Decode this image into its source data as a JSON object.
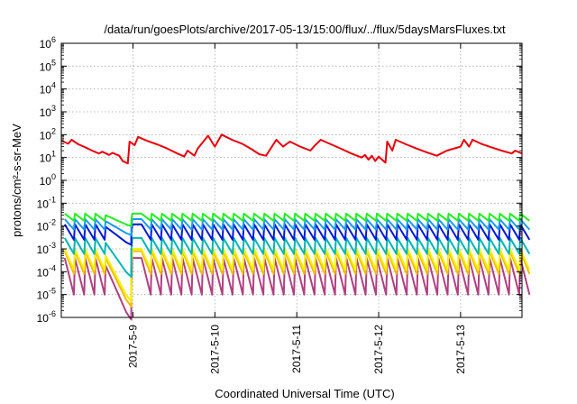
{
  "chart_data": {
    "type": "line",
    "title": "/data/run/goesPlots/archive/2017-05-13/15:00/flux/../flux/5daysMarsFluxes.txt",
    "xlabel": "Coordinated Universal Time (UTC)",
    "ylabel": "protons/cm²-s-sr-MeV",
    "y_scale": "log",
    "ylim": [
      1e-06,
      1000000.0
    ],
    "y_ticks": [
      {
        "value": 1e-06,
        "mant": "10",
        "exp": "-6"
      },
      {
        "value": 1e-05,
        "mant": "10",
        "exp": "-5"
      },
      {
        "value": 0.0001,
        "mant": "10",
        "exp": "-4"
      },
      {
        "value": 0.001,
        "mant": "10",
        "exp": "-3"
      },
      {
        "value": 0.01,
        "mant": "10",
        "exp": "-2"
      },
      {
        "value": 0.1,
        "mant": "10",
        "exp": "-1"
      },
      {
        "value": 1,
        "mant": "10",
        "exp": "0"
      },
      {
        "value": 10,
        "mant": "10",
        "exp": "1"
      },
      {
        "value": 100,
        "mant": "10",
        "exp": "2"
      },
      {
        "value": 1000,
        "mant": "10",
        "exp": "3"
      },
      {
        "value": 10000,
        "mant": "10",
        "exp": "4"
      },
      {
        "value": 100000,
        "mant": "10",
        "exp": "5"
      },
      {
        "value": 1000000,
        "mant": "10",
        "exp": "6"
      }
    ],
    "xlim": [
      "2017-05-08T03:00",
      "2017-05-13T18:00"
    ],
    "x_ticks": [
      {
        "value": "2017-05-09",
        "label": "2017-5-9"
      },
      {
        "value": "2017-05-10",
        "label": "2017-5-10"
      },
      {
        "value": "2017-05-11",
        "label": "2017-5-11"
      },
      {
        "value": "2017-05-12",
        "label": "2017-5-12"
      },
      {
        "value": "2017-05-13",
        "label": "2017-5-13"
      }
    ],
    "grid": true,
    "legend": "none",
    "series": [
      {
        "color": "#e8000b",
        "pattern": "sawtooth",
        "values": [
          [
            "2017-05-08T03:00",
            55
          ],
          [
            "2017-05-08T05:00",
            40
          ],
          [
            "2017-05-08T06:00",
            60
          ],
          [
            "2017-05-08T08:00",
            38
          ],
          [
            "2017-05-08T10:00",
            28
          ],
          [
            "2017-05-08T12:00",
            20
          ],
          [
            "2017-05-08T14:00",
            15
          ],
          [
            "2017-05-08T15:00",
            18
          ],
          [
            "2017-05-08T17:00",
            13
          ],
          [
            "2017-05-08T18:00",
            16
          ],
          [
            "2017-05-08T20:00",
            12
          ],
          [
            "2017-05-08T21:00",
            7
          ],
          [
            "2017-05-08T22:30",
            5.5
          ],
          [
            "2017-05-08T23:00",
            50
          ],
          [
            "2017-05-09T00:30",
            35
          ],
          [
            "2017-05-09T01:30",
            80
          ],
          [
            "2017-05-09T04:00",
            55
          ],
          [
            "2017-05-09T07:00",
            38
          ],
          [
            "2017-05-09T10:00",
            25
          ],
          [
            "2017-05-09T13:00",
            15
          ],
          [
            "2017-05-09T15:00",
            11
          ],
          [
            "2017-05-09T16:00",
            20
          ],
          [
            "2017-05-09T18:00",
            12
          ],
          [
            "2017-05-09T19:00",
            25
          ],
          [
            "2017-05-09T22:00",
            90
          ],
          [
            "2017-05-10T00:00",
            30
          ],
          [
            "2017-05-10T02:00",
            100
          ],
          [
            "2017-05-10T05:00",
            60
          ],
          [
            "2017-05-10T08:00",
            40
          ],
          [
            "2017-05-10T11:00",
            22
          ],
          [
            "2017-05-10T13:00",
            14
          ],
          [
            "2017-05-10T15:00",
            12
          ],
          [
            "2017-05-10T18:00",
            60
          ],
          [
            "2017-05-10T20:00",
            30
          ],
          [
            "2017-05-10T22:00",
            50
          ],
          [
            "2017-05-11T01:00",
            30
          ],
          [
            "2017-05-11T04:00",
            20
          ],
          [
            "2017-05-11T05:00",
            30
          ],
          [
            "2017-05-11T07:00",
            60
          ],
          [
            "2017-05-11T10:00",
            38
          ],
          [
            "2017-05-11T13:00",
            24
          ],
          [
            "2017-05-11T16:00",
            15
          ],
          [
            "2017-05-11T19:00",
            10
          ],
          [
            "2017-05-11T20:00",
            13
          ],
          [
            "2017-05-11T21:00",
            8
          ],
          [
            "2017-05-11T22:00",
            12
          ],
          [
            "2017-05-11T23:00",
            7
          ],
          [
            "2017-05-12T00:00",
            11
          ],
          [
            "2017-05-12T01:00",
            8
          ],
          [
            "2017-05-12T02:00",
            6
          ],
          [
            "2017-05-12T02:30",
            50
          ],
          [
            "2017-05-12T04:00",
            20
          ],
          [
            "2017-05-12T05:00",
            60
          ],
          [
            "2017-05-12T08:00",
            38
          ],
          [
            "2017-05-12T11:00",
            25
          ],
          [
            "2017-05-12T14:00",
            17
          ],
          [
            "2017-05-12T17:00",
            12
          ],
          [
            "2017-05-12T20:00",
            20
          ],
          [
            "2017-05-13T00:00",
            30
          ],
          [
            "2017-05-13T01:00",
            60
          ],
          [
            "2017-05-13T02:30",
            30
          ],
          [
            "2017-05-13T03:30",
            60
          ],
          [
            "2017-05-13T06:00",
            40
          ],
          [
            "2017-05-13T09:00",
            28
          ],
          [
            "2017-05-13T12:00",
            20
          ],
          [
            "2017-05-13T15:00",
            15
          ],
          [
            "2017-05-13T16:00",
            20
          ],
          [
            "2017-05-13T18:00",
            15
          ]
        ]
      },
      {
        "color": "#22ee22",
        "pattern": "cyclic",
        "high": 0.035,
        "low": 0.017,
        "dip_low": 0.01,
        "dip_recover": 0.017
      },
      {
        "color": "#1a9af0",
        "pattern": "cyclic",
        "high": 0.02,
        "low": 0.007,
        "dip_low": 0.004,
        "dip_recover": 0.009
      },
      {
        "color": "#0018d8",
        "pattern": "cyclic",
        "high": 0.012,
        "low": 0.0025,
        "dip_low": 0.0015,
        "dip_recover": 0.004
      },
      {
        "color": "#00b4b4",
        "pattern": "cyclic",
        "high": 0.003,
        "low": 0.0006,
        "dip_low": 6e-05,
        "dip_recover": 0.0008
      },
      {
        "color": "#f2f200",
        "pattern": "cyclic",
        "high": 0.001,
        "low": 0.00012,
        "dip_low": 5e-06,
        "dip_recover": 0.00015
      },
      {
        "color": "#f5b800",
        "pattern": "cyclic",
        "high": 0.0008,
        "low": 8e-05,
        "dip_low": 3e-06,
        "dip_recover": 0.0001
      },
      {
        "color": "#b04080",
        "pattern": "cyclic",
        "high": 0.0004,
        "low": 1e-05,
        "dip_low": 8e-07,
        "dip_recover": 1.5e-05
      }
    ]
  }
}
